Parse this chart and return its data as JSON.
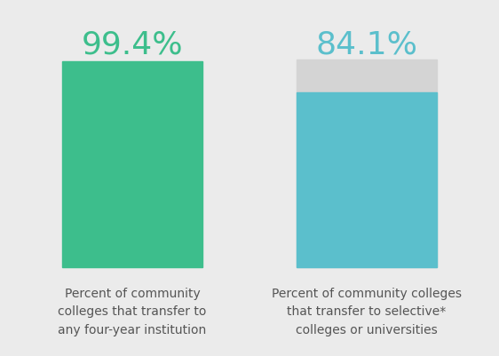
{
  "background_color": "#ebebeb",
  "bar1_value": 99.4,
  "bar2_value": 84.1,
  "bar1_color": "#3dbe8c",
  "bar2_color": "#5bbfcc",
  "bar2_remainder_color": "#d4d4d4",
  "bar1_label_color": "#3dbe8c",
  "bar2_label_color": "#5bbfcc",
  "label1_text": "99.4%",
  "label2_text": "84.1%",
  "caption1_line1": "Percent of community",
  "caption1_line2": "colleges that transfer to",
  "caption1_line3": "any four-year institution",
  "caption2_line1": "Percent of community colleges",
  "caption2_line2": "that transfer to selective*",
  "caption2_line3": "colleges or universities",
  "caption_color": "#555555",
  "caption_fontsize": 10,
  "label_fontsize": 26,
  "bar_width": 0.28
}
